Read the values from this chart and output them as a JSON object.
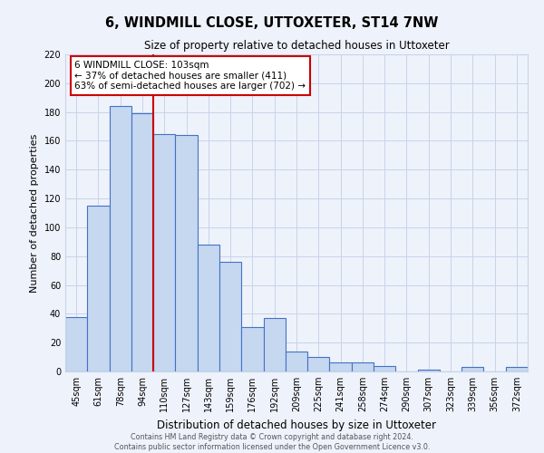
{
  "title": "6, WINDMILL CLOSE, UTTOXETER, ST14 7NW",
  "subtitle": "Size of property relative to detached houses in Uttoxeter",
  "xlabel": "Distribution of detached houses by size in Uttoxeter",
  "ylabel": "Number of detached properties",
  "bar_labels": [
    "45sqm",
    "61sqm",
    "78sqm",
    "94sqm",
    "110sqm",
    "127sqm",
    "143sqm",
    "159sqm",
    "176sqm",
    "192sqm",
    "209sqm",
    "225sqm",
    "241sqm",
    "258sqm",
    "274sqm",
    "290sqm",
    "307sqm",
    "323sqm",
    "339sqm",
    "356sqm",
    "372sqm"
  ],
  "bar_values": [
    38,
    115,
    184,
    179,
    165,
    164,
    88,
    76,
    31,
    37,
    14,
    10,
    6,
    6,
    4,
    0,
    1,
    0,
    3,
    0,
    3
  ],
  "bar_color": "#c5d8f0",
  "bar_edge_color": "#4472c4",
  "vline_pos": 3.5,
  "vline_color": "#cc0000",
  "annotation_title": "6 WINDMILL CLOSE: 103sqm",
  "annotation_line1": "← 37% of detached houses are smaller (411)",
  "annotation_line2": "63% of semi-detached houses are larger (702) →",
  "ylim": [
    0,
    220
  ],
  "yticks": [
    0,
    20,
    40,
    60,
    80,
    100,
    120,
    140,
    160,
    180,
    200,
    220
  ],
  "footer_line1": "Contains HM Land Registry data © Crown copyright and database right 2024.",
  "footer_line2": "Contains public sector information licensed under the Open Government Licence v3.0.",
  "bg_color": "#eef2fb",
  "grid_color": "#c8d4e8",
  "title_fontsize": 10.5,
  "subtitle_fontsize": 8.5
}
